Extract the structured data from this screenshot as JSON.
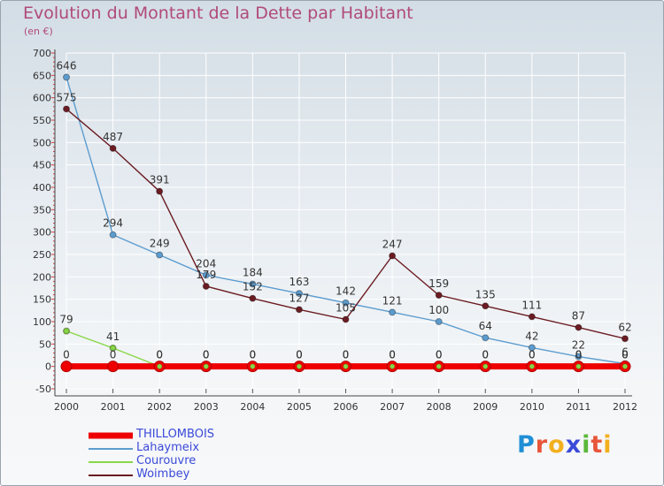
{
  "title": "Evolution du Montant de la Dette par Habitant",
  "subtitle": "(en €)",
  "logo": {
    "text": "Proxiti",
    "letter_colors": [
      "#1f8fd6",
      "#e8563a",
      "#f2b01e",
      "#3a4ad8",
      "#5cb83a",
      "#e8563a",
      "#f2b01e"
    ]
  },
  "chart_data": {
    "type": "line",
    "title": "Evolution du Montant de la Dette par Habitant",
    "ylabel": "(en €)",
    "xlabel": "",
    "x": [
      "2000",
      "2001",
      "2002",
      "2003",
      "2004",
      "2005",
      "2006",
      "2007",
      "2008",
      "2009",
      "2010",
      "2011",
      "2012"
    ],
    "ylim": [
      -50,
      700
    ],
    "yticks": [
      -50,
      0,
      50,
      100,
      150,
      200,
      250,
      300,
      350,
      400,
      450,
      500,
      550,
      600,
      650,
      700
    ],
    "grid": true,
    "legend_position": "bottom-left",
    "series": [
      {
        "name": "THILLOMBOIS",
        "color": "#ee0000",
        "values": [
          0,
          0,
          0,
          0,
          0,
          0,
          0,
          0,
          0,
          0,
          0,
          0,
          0
        ]
      },
      {
        "name": "Lahaymeix",
        "color": "#5c9ccf",
        "values": [
          646,
          294,
          249,
          204,
          184,
          163,
          142,
          121,
          100,
          64,
          42,
          22,
          6
        ]
      },
      {
        "name": "Courouvre",
        "color": "#88d848",
        "values": [
          79,
          41,
          0,
          0,
          0,
          0,
          0,
          0,
          0,
          0,
          0,
          0,
          0
        ]
      },
      {
        "name": "Woimbey",
        "color": "#6b1c22",
        "values": [
          575,
          487,
          391,
          179,
          152,
          127,
          105,
          247,
          159,
          135,
          111,
          87,
          62
        ]
      }
    ]
  }
}
